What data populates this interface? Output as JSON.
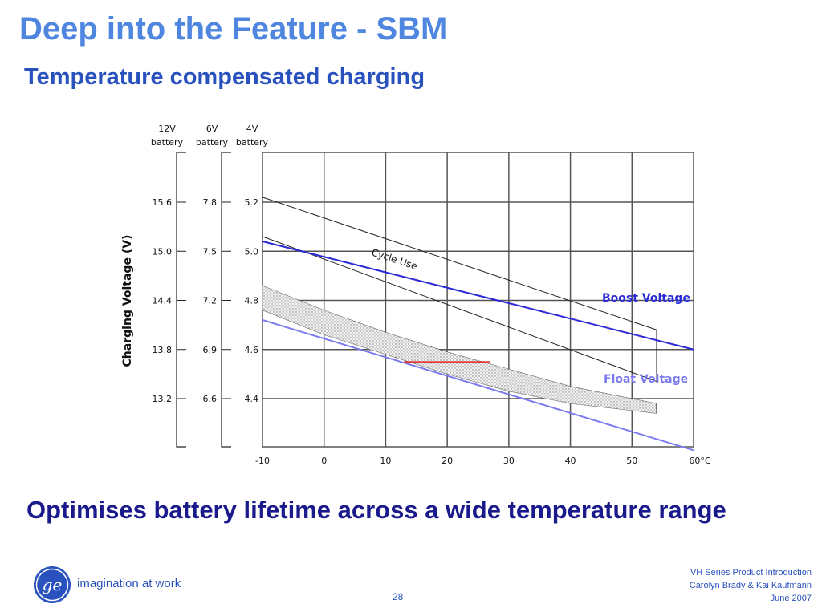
{
  "slide": {
    "title": "Deep into the Feature - SBM",
    "subtitle": "Temperature compensated charging",
    "tagline": "Optimises battery lifetime across a wide temperature range",
    "page_number": "28",
    "logo_text": "imagination at work",
    "footer": {
      "line1": "VH Series Product Introduction",
      "line2": "Carolyn Brady & Kai Kaufmann",
      "line3": "June 2007"
    }
  },
  "colors": {
    "title": "#4f86e0",
    "subtitle": "#2a52be",
    "tagline": "#1a1a8c",
    "boost": "#2b2bd6",
    "float": "#7b7bf0",
    "cycle": "#222222",
    "reference": "#e02020",
    "grid": "#555555"
  },
  "chart_data": {
    "type": "line",
    "ylabel": "Charging Voltage (V)",
    "x_ticks": [
      "-10",
      "0",
      "10",
      "20",
      "30",
      "40",
      "50",
      "60°C"
    ],
    "xlim": [
      -10,
      60
    ],
    "ylim_4v": [
      4.0,
      5.2
    ],
    "y_scales": [
      {
        "header": [
          "12V",
          "battery"
        ],
        "ticks": [
          "15.6",
          "15.0",
          "14.4",
          "13.8",
          "13.2"
        ]
      },
      {
        "header": [
          "6V",
          "battery"
        ],
        "ticks": [
          "7.8",
          "7.5",
          "7.2",
          "6.9",
          "6.6"
        ]
      },
      {
        "header": [
          "4V",
          "battery"
        ],
        "ticks": [
          "5.2",
          "5.0",
          "4.8",
          "4.6",
          "4.4"
        ]
      }
    ],
    "y_tick_values_4v": [
      5.2,
      5.0,
      4.8,
      4.6,
      4.4
    ],
    "series": [
      {
        "name": "Boost Voltage",
        "x": [
          -10,
          60
        ],
        "y": [
          5.04,
          4.6
        ]
      },
      {
        "name": "Float Voltage",
        "x": [
          -10,
          60
        ],
        "y": [
          4.72,
          4.19
        ]
      }
    ],
    "cycle_use": {
      "label": "Cycle Use",
      "upper": {
        "x": [
          -10,
          54
        ],
        "y": [
          5.22,
          4.68
        ]
      },
      "lower": {
        "x": [
          -10,
          54
        ],
        "y": [
          5.06,
          4.47
        ]
      }
    },
    "hatched_band": {
      "x": [
        -10,
        0,
        10,
        20,
        30,
        40,
        54
      ],
      "upper": [
        4.86,
        4.76,
        4.67,
        4.59,
        4.52,
        4.45,
        4.38
      ],
      "lower": [
        4.76,
        4.66,
        4.58,
        4.5,
        4.43,
        4.38,
        4.34
      ]
    },
    "reference_segment": {
      "x": [
        13,
        27
      ],
      "y": [
        4.55,
        4.55
      ]
    }
  }
}
